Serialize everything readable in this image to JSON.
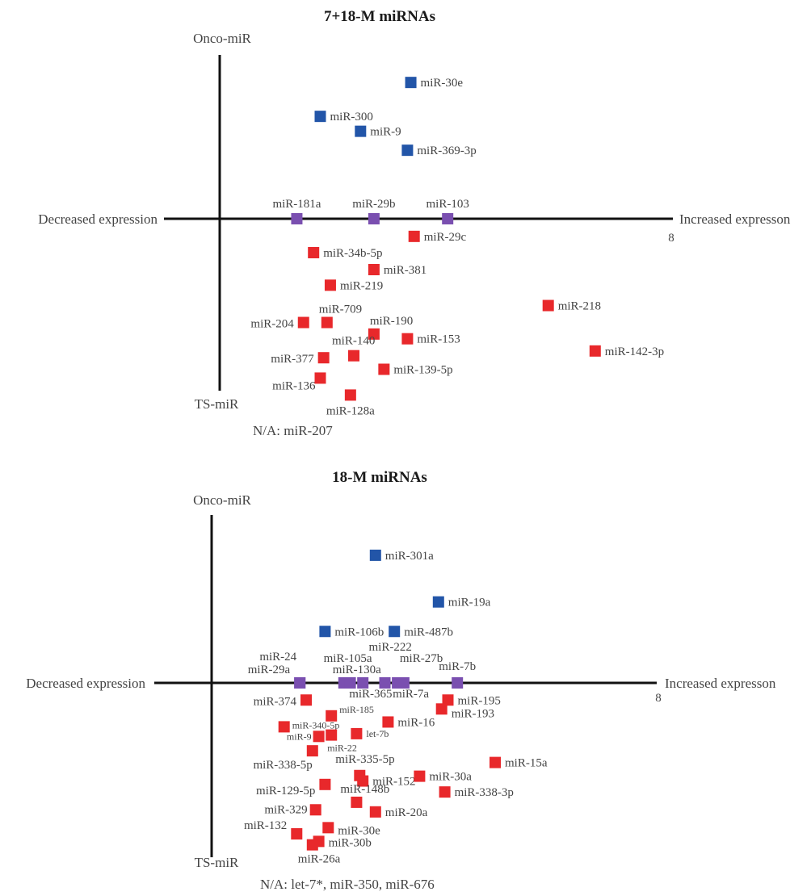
{
  "chart_data": [
    {
      "type": "scatter",
      "title": "7+18-M miRNAs",
      "axis_labels": {
        "top": "Onco-miR",
        "bottom": "TS-miR",
        "left": "Decreased expression",
        "right": "Increased expresson",
        "x_tick": "8"
      },
      "legend": "none",
      "grid": false,
      "categories_colors": {
        "onco": "#2255a8",
        "neutral": "#7a4fb0",
        "ts": "#e8282b"
      },
      "points": [
        {
          "label": "miR-30e",
          "category": "onco",
          "x": 2.85,
          "y": 2.01
        },
        {
          "label": "miR-300",
          "category": "onco",
          "x": 1.5,
          "y": 1.51
        },
        {
          "label": "miR-9",
          "category": "onco",
          "x": 2.1,
          "y": 1.29
        },
        {
          "label": "miR-369-3p",
          "category": "onco",
          "x": 2.8,
          "y": 1.01
        },
        {
          "label": "miR-181a",
          "category": "neutral",
          "x": 1.15,
          "y": 0
        },
        {
          "label": "miR-29b",
          "category": "neutral",
          "x": 2.3,
          "y": 0
        },
        {
          "label": "miR-103",
          "category": "neutral",
          "x": 3.4,
          "y": 0
        },
        {
          "label": "miR-29c",
          "category": "ts",
          "x": 2.9,
          "y": -0.26
        },
        {
          "label": "miR-34b-5p",
          "category": "ts",
          "x": 1.4,
          "y": -0.5
        },
        {
          "label": "miR-381",
          "category": "ts",
          "x": 2.3,
          "y": -0.75
        },
        {
          "label": "miR-219",
          "category": "ts",
          "x": 1.65,
          "y": -0.98
        },
        {
          "label": "miR-709",
          "category": "ts",
          "x": 1.6,
          "y": -1.53
        },
        {
          "label": "miR-204",
          "category": "ts",
          "x": 1.25,
          "y": -1.53
        },
        {
          "label": "miR-190",
          "category": "ts",
          "x": 2.3,
          "y": -1.7
        },
        {
          "label": "miR-153",
          "category": "ts",
          "x": 2.8,
          "y": -1.77
        },
        {
          "label": "miR-218",
          "category": "ts",
          "x": 4.9,
          "y": -1.28
        },
        {
          "label": "miR-142-3p",
          "category": "ts",
          "x": 5.6,
          "y": -1.95
        },
        {
          "label": "miR-140",
          "category": "ts",
          "x": 2.0,
          "y": -2.02
        },
        {
          "label": "miR-377",
          "category": "ts",
          "x": 1.55,
          "y": -2.05
        },
        {
          "label": "miR-139-5p",
          "category": "ts",
          "x": 2.45,
          "y": -2.22
        },
        {
          "label": "miR-136",
          "category": "ts",
          "x": 1.5,
          "y": -2.35
        },
        {
          "label": "miR-128a",
          "category": "ts",
          "x": 1.95,
          "y": -2.6
        }
      ],
      "footnote": "N/A: miR-207"
    },
    {
      "type": "scatter",
      "title": "18-M miRNAs",
      "axis_labels": {
        "top": "Onco-miR",
        "bottom": "TS-miR",
        "left": "Decreased expression",
        "right": "Increased expresson",
        "x_tick": "8"
      },
      "legend": "none",
      "grid": false,
      "categories_colors": {
        "onco": "#2255a8",
        "neutral": "#7a4fb0",
        "ts": "#e8282b"
      },
      "points": [
        {
          "label": "miR-301a",
          "category": "onco",
          "x": 2.6,
          "y": 1.86
        },
        {
          "label": "miR-19a",
          "category": "onco",
          "x": 3.6,
          "y": 1.18
        },
        {
          "label": "miR-106b",
          "category": "onco",
          "x": 1.8,
          "y": 0.75
        },
        {
          "label": "miR-487b",
          "category": "onco",
          "x": 2.9,
          "y": 0.75
        },
        {
          "label": "miR-29a",
          "category": "neutral",
          "x": 1.4,
          "y": 0
        },
        {
          "label": "miR-24",
          "category": "neutral",
          "x": 1.4,
          "y": 0
        },
        {
          "label": "miR-130a",
          "category": "neutral",
          "x": 2.1,
          "y": 0
        },
        {
          "label": "miR-105a",
          "category": "neutral",
          "x": 2.2,
          "y": 0
        },
        {
          "label": "miR-365",
          "category": "neutral",
          "x": 2.4,
          "y": 0
        },
        {
          "label": "miR-222",
          "category": "neutral",
          "x": 2.75,
          "y": 0
        },
        {
          "label": "miR-7a",
          "category": "neutral",
          "x": 2.95,
          "y": 0
        },
        {
          "label": "miR-27b",
          "category": "neutral",
          "x": 3.05,
          "y": 0
        },
        {
          "label": "miR-7b",
          "category": "neutral",
          "x": 3.9,
          "y": 0
        },
        {
          "label": "miR-374",
          "category": "ts",
          "x": 1.5,
          "y": -0.25
        },
        {
          "label": "miR-195",
          "category": "ts",
          "x": 3.75,
          "y": -0.25
        },
        {
          "label": "miR-193",
          "category": "ts",
          "x": 3.65,
          "y": -0.38
        },
        {
          "label": "miR-185",
          "category": "ts",
          "x": 1.9,
          "y": -0.48
        },
        {
          "label": "miR-16",
          "category": "ts",
          "x": 2.8,
          "y": -0.57
        },
        {
          "label": "miR-340-5p",
          "category": "ts",
          "x": 1.15,
          "y": -0.64
        },
        {
          "label": "miR-9",
          "category": "ts",
          "x": 1.7,
          "y": -0.78
        },
        {
          "label": "miR-22",
          "category": "ts",
          "x": 1.9,
          "y": -0.76
        },
        {
          "label": "let-7b",
          "category": "ts",
          "x": 2.3,
          "y": -0.74
        },
        {
          "label": "miR-338-5p",
          "category": "ts",
          "x": 1.6,
          "y": -0.99
        },
        {
          "label": "miR-335-5p",
          "category": "ts",
          "x": 2.35,
          "y": -1.35
        },
        {
          "label": "miR-152",
          "category": "ts",
          "x": 2.4,
          "y": -1.43
        },
        {
          "label": "miR-30a",
          "category": "ts",
          "x": 3.3,
          "y": -1.36
        },
        {
          "label": "miR-15a",
          "category": "ts",
          "x": 4.5,
          "y": -1.16
        },
        {
          "label": "miR-129-5p",
          "category": "ts",
          "x": 1.8,
          "y": -1.48
        },
        {
          "label": "miR-338-3p",
          "category": "ts",
          "x": 3.7,
          "y": -1.59
        },
        {
          "label": "miR-148b",
          "category": "ts",
          "x": 2.3,
          "y": -1.74
        },
        {
          "label": "miR-329",
          "category": "ts",
          "x": 1.65,
          "y": -1.85
        },
        {
          "label": "miR-20a",
          "category": "ts",
          "x": 2.6,
          "y": -1.88
        },
        {
          "label": "miR-30e",
          "category": "ts",
          "x": 1.85,
          "y": -2.11
        },
        {
          "label": "miR-132",
          "category": "ts",
          "x": 1.35,
          "y": -2.2
        },
        {
          "label": "miR-30b",
          "category": "ts",
          "x": 1.7,
          "y": -2.31
        },
        {
          "label": "miR-26a",
          "category": "ts",
          "x": 1.6,
          "y": -2.36
        }
      ],
      "footnote": "N/A: let-7*, miR-350, miR-676"
    }
  ]
}
